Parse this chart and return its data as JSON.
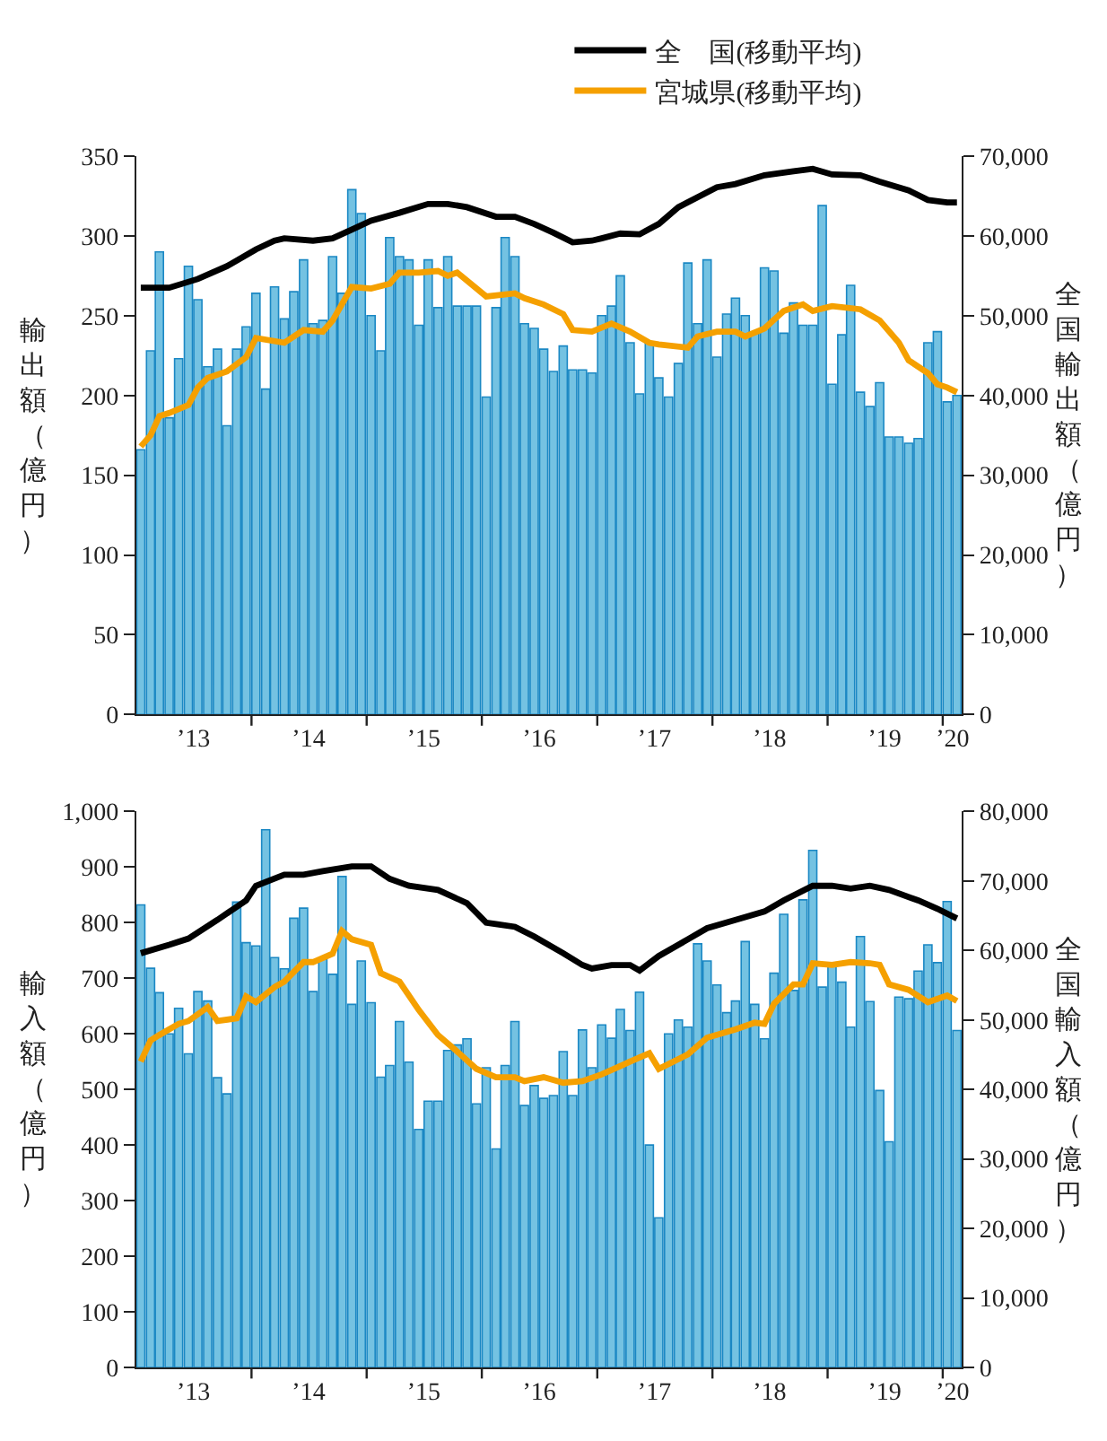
{
  "chart_data": [
    {
      "type": "bar",
      "ylabel": "輸出額（億円）",
      "y2label": "全国輸出額（億円）",
      "legend": "top right",
      "x": [
        "2013-01-15",
        "2013-02-15",
        "2013-03-15",
        "2013-04-15",
        "2013-05-15",
        "2013-06-15",
        "2013-07-15",
        "2013-08-15",
        "2013-09-15",
        "2013-10-15",
        "2013-11-15",
        "2013-12-15",
        "2014-01-15",
        "2014-02-15",
        "2014-03-15",
        "2014-04-15",
        "2014-05-15",
        "2014-06-15",
        "2014-07-15",
        "2014-08-15",
        "2014-09-15",
        "2014-10-15",
        "2014-11-15",
        "2014-12-15",
        "2015-01-15",
        "2015-02-15",
        "2015-03-15",
        "2015-04-15",
        "2015-05-15",
        "2015-06-15",
        "2015-07-15",
        "2015-08-15",
        "2015-09-15",
        "2015-10-15",
        "2015-11-15",
        "2015-12-15",
        "2016-01-15",
        "2016-02-15",
        "2016-03-15",
        "2016-04-15",
        "2016-05-15",
        "2016-06-15",
        "2016-07-15",
        "2016-08-15",
        "2016-09-15",
        "2016-10-15",
        "2016-11-15",
        "2016-12-15",
        "2017-01-15",
        "2017-02-15",
        "2017-03-15",
        "2017-04-15",
        "2017-05-15",
        "2017-06-15",
        "2017-07-15",
        "2017-08-15",
        "2017-09-15",
        "2017-10-15",
        "2017-11-15",
        "2017-12-15",
        "2018-01-15",
        "2018-02-15",
        "2018-03-15",
        "2018-04-15",
        "2018-05-15",
        "2018-06-15",
        "2018-07-15",
        "2018-08-15",
        "2018-09-15",
        "2018-10-15",
        "2018-11-15",
        "2018-12-15",
        "2019-01-15",
        "2019-02-15",
        "2019-03-15",
        "2019-04-15",
        "2019-05-15",
        "2019-06-15",
        "2019-07-15",
        "2019-08-15",
        "2019-09-15",
        "2019-10-15",
        "2019-11-15",
        "2019-12-15",
        "2020-01-15",
        "2020-02-15"
      ],
      "xlim": [
        "2013-01",
        "2020-03"
      ],
      "xticks": [
        {
          "value": "2013-07",
          "label": "’13"
        },
        {
          "value": "2014-07",
          "label": "’14"
        },
        {
          "value": "2015-07",
          "label": "’15"
        },
        {
          "value": "2016-07",
          "label": "’16"
        },
        {
          "value": "2017-07",
          "label": "’17"
        },
        {
          "value": "2018-07",
          "label": "’18"
        },
        {
          "value": "2019-07",
          "label": "’19"
        },
        {
          "value": "2020-02",
          "label": "’20"
        },
        {
          "value": "2014-01",
          "label": null
        },
        {
          "value": "2015-01",
          "label": null
        },
        {
          "value": "2016-01",
          "label": null
        },
        {
          "value": "2017-01",
          "label": null
        },
        {
          "value": "2018-01",
          "label": null
        },
        {
          "value": "2019-01",
          "label": null
        },
        {
          "value": "2020-01",
          "label": null
        }
      ],
      "ylim": [
        0,
        350
      ],
      "yticks": [
        0,
        50,
        100,
        150,
        200,
        250,
        300,
        350
      ],
      "y2lim": [
        0,
        70000
      ],
      "y2ticks": [
        {
          "value": 0,
          "label": "0"
        },
        {
          "value": 10000,
          "label": "10,000"
        },
        {
          "value": 20000,
          "label": "20,000"
        },
        {
          "value": 30000,
          "label": "30,000"
        },
        {
          "value": 40000,
          "label": "40,000"
        },
        {
          "value": 50000,
          "label": "50,000"
        },
        {
          "value": 60000,
          "label": "60,000"
        },
        {
          "value": 70000,
          "label": "70,000"
        }
      ],
      "series": [
        {
          "color": "#74c2e2",
          "values": [
            166,
            228,
            290,
            186,
            223,
            281,
            260,
            218,
            229,
            181,
            229,
            243,
            264,
            204,
            268,
            248,
            265,
            285,
            245,
            247,
            287,
            264,
            329,
            314,
            250,
            228,
            299,
            287,
            285,
            244,
            285,
            255,
            287,
            256,
            256,
            256,
            199,
            255,
            299,
            287,
            245,
            242,
            229,
            215,
            231,
            216,
            216,
            214,
            250,
            256,
            275,
            233,
            201,
            233,
            211,
            199,
            220,
            283,
            245,
            285,
            224,
            251,
            261,
            250,
            239,
            280,
            278,
            239,
            258,
            244,
            244,
            319,
            207,
            238,
            269,
            202,
            193,
            208,
            174,
            174,
            170,
            173,
            233,
            240,
            196,
            200
          ]
        },
        {
          "type": "line",
          "name": "全　国(移動平均)",
          "axis": "y2",
          "color": "#000000",
          "x": [
            "2013-01-15",
            "2013-04-15",
            "2013-07-15",
            "2013-10-15",
            "2014-01-15",
            "2014-03-15",
            "2014-04-15",
            "2014-07-15",
            "2014-09-15",
            "2014-11-15",
            "2015-01-15",
            "2015-04-15",
            "2015-07-15",
            "2015-09-15",
            "2015-11-15",
            "2016-02-15",
            "2016-04-15",
            "2016-06-15",
            "2016-08-15",
            "2016-10-15",
            "2016-12-15",
            "2017-01-15",
            "2017-03-15",
            "2017-05-15",
            "2017-07-15",
            "2017-09-15",
            "2018-01-15",
            "2018-03-15",
            "2018-06-15",
            "2018-09-15",
            "2018-11-15",
            "2019-01-15",
            "2019-04-15",
            "2019-06-15",
            "2019-09-15",
            "2019-11-15",
            "2020-01-15",
            "2020-02-15"
          ],
          "values": [
            53500,
            53500,
            54600,
            56200,
            58300,
            59400,
            59700,
            59400,
            59700,
            60800,
            61900,
            62900,
            64000,
            64000,
            63600,
            62400,
            62400,
            61500,
            60400,
            59200,
            59400,
            59700,
            60300,
            60200,
            61500,
            63600,
            66100,
            66500,
            67600,
            68100,
            68400,
            67700,
            67600,
            66800,
            65700,
            64500,
            64200,
            64200
          ]
        },
        {
          "type": "line",
          "name": "宮城県(移動平均)",
          "color": "#f5a000",
          "x": [
            "2013-01-15",
            "2013-02-15",
            "2013-03-15",
            "2013-04-15",
            "2013-06-15",
            "2013-07-15",
            "2013-08-15",
            "2013-10-15",
            "2013-12-15",
            "2014-01-15",
            "2014-04-15",
            "2014-06-15",
            "2014-08-15",
            "2014-09-15",
            "2014-11-15",
            "2015-01-15",
            "2015-03-15",
            "2015-04-15",
            "2015-06-15",
            "2015-08-15",
            "2015-09-15",
            "2015-10-15",
            "2016-01-15",
            "2016-04-15",
            "2016-05-15",
            "2016-07-15",
            "2016-09-15",
            "2016-10-15",
            "2016-12-15",
            "2017-02-15",
            "2017-04-15",
            "2017-06-15",
            "2017-07-15",
            "2017-10-15",
            "2017-11-15",
            "2018-01-15",
            "2018-03-15",
            "2018-04-15",
            "2018-06-15",
            "2018-08-15",
            "2018-10-15",
            "2018-11-15",
            "2019-01-15",
            "2019-04-15",
            "2019-06-15",
            "2019-08-15",
            "2019-09-15",
            "2019-11-15",
            "2019-12-15",
            "2020-01-15",
            "2020-02-15"
          ],
          "values": [
            168,
            175,
            187,
            189,
            194,
            205,
            211,
            215,
            224,
            236,
            233,
            241,
            240,
            247,
            268,
            267,
            270,
            277,
            277,
            278,
            275,
            277,
            262,
            264,
            261,
            257,
            251,
            241,
            240,
            245,
            240,
            233,
            232,
            230,
            237,
            240,
            240,
            237,
            242,
            253,
            257,
            253,
            256,
            254,
            247,
            233,
            222,
            214,
            207,
            205,
            202
          ]
        }
      ]
    },
    {
      "type": "bar",
      "ylabel": "輸入額（億円）",
      "y2label": "全国輸入額（億円）",
      "x": [
        "2013-01-15",
        "2013-02-15",
        "2013-03-15",
        "2013-04-15",
        "2013-05-15",
        "2013-06-15",
        "2013-07-15",
        "2013-08-15",
        "2013-09-15",
        "2013-10-15",
        "2013-11-15",
        "2013-12-15",
        "2014-01-15",
        "2014-02-15",
        "2014-03-15",
        "2014-04-15",
        "2014-05-15",
        "2014-06-15",
        "2014-07-15",
        "2014-08-15",
        "2014-09-15",
        "2014-10-15",
        "2014-11-15",
        "2014-12-15",
        "2015-01-15",
        "2015-02-15",
        "2015-03-15",
        "2015-04-15",
        "2015-05-15",
        "2015-06-15",
        "2015-07-15",
        "2015-08-15",
        "2015-09-15",
        "2015-10-15",
        "2015-11-15",
        "2015-12-15",
        "2016-01-15",
        "2016-02-15",
        "2016-03-15",
        "2016-04-15",
        "2016-05-15",
        "2016-06-15",
        "2016-07-15",
        "2016-08-15",
        "2016-09-15",
        "2016-10-15",
        "2016-11-15",
        "2016-12-15",
        "2017-01-15",
        "2017-02-15",
        "2017-03-15",
        "2017-04-15",
        "2017-05-15",
        "2017-06-15",
        "2017-07-15",
        "2017-08-15",
        "2017-09-15",
        "2017-10-15",
        "2017-11-15",
        "2017-12-15",
        "2018-01-15",
        "2018-02-15",
        "2018-03-15",
        "2018-04-15",
        "2018-05-15",
        "2018-06-15",
        "2018-07-15",
        "2018-08-15",
        "2018-09-15",
        "2018-10-15",
        "2018-11-15",
        "2018-12-15",
        "2019-01-15",
        "2019-02-15",
        "2019-03-15",
        "2019-04-15",
        "2019-05-15",
        "2019-06-15",
        "2019-07-15",
        "2019-08-15",
        "2019-09-15",
        "2019-10-15",
        "2019-11-15",
        "2019-12-15",
        "2020-01-15",
        "2020-02-15"
      ],
      "xlim": [
        "2013-01",
        "2020-03"
      ],
      "xticks": [
        {
          "value": "2013-07",
          "label": "’13"
        },
        {
          "value": "2014-07",
          "label": "’14"
        },
        {
          "value": "2015-07",
          "label": "’15"
        },
        {
          "value": "2016-07",
          "label": "’16"
        },
        {
          "value": "2017-07",
          "label": "’17"
        },
        {
          "value": "2018-07",
          "label": "’18"
        },
        {
          "value": "2019-07",
          "label": "’19"
        },
        {
          "value": "2020-02",
          "label": "’20"
        },
        {
          "value": "2014-01",
          "label": null
        },
        {
          "value": "2015-01",
          "label": null
        },
        {
          "value": "2016-01",
          "label": null
        },
        {
          "value": "2017-01",
          "label": null
        },
        {
          "value": "2018-01",
          "label": null
        },
        {
          "value": "2019-01",
          "label": null
        },
        {
          "value": "2020-01",
          "label": null
        }
      ],
      "ylim": [
        0,
        1000
      ],
      "yticks": [
        0,
        100,
        200,
        300,
        400,
        500,
        600,
        700,
        800,
        900,
        {
          "value": 1000,
          "label": "1,000"
        }
      ],
      "y2lim": [
        0,
        80000
      ],
      "y2ticks": [
        {
          "value": 0,
          "label": "0"
        },
        {
          "value": 10000,
          "label": "10,000"
        },
        {
          "value": 20000,
          "label": "20,000"
        },
        {
          "value": 30000,
          "label": "30,000"
        },
        {
          "value": 40000,
          "label": "40,000"
        },
        {
          "value": 50000,
          "label": "50,000"
        },
        {
          "value": 60000,
          "label": "60,000"
        },
        {
          "value": 70000,
          "label": "70,000"
        },
        {
          "value": 80000,
          "label": "80,000"
        }
      ],
      "series": [
        {
          "color": "#74c2e2",
          "values": [
            832,
            718,
            674,
            600,
            646,
            564,
            676,
            659,
            521,
            492,
            837,
            764,
            758,
            967,
            737,
            717,
            808,
            826,
            676,
            734,
            707,
            883,
            653,
            731,
            656,
            522,
            543,
            622,
            549,
            428,
            479,
            479,
            570,
            580,
            591,
            474,
            539,
            393,
            543,
            622,
            471,
            507,
            484,
            489,
            568,
            489,
            607,
            539,
            616,
            592,
            644,
            606,
            675,
            400,
            269,
            600,
            625,
            612,
            762,
            731,
            688,
            638,
            659,
            766,
            653,
            591,
            709,
            815,
            678,
            841,
            930,
            684,
            723,
            693,
            612,
            775,
            658,
            498,
            406,
            666,
            663,
            713,
            760,
            728,
            838,
            606
          ]
        },
        {
          "type": "line",
          "axis": "y2",
          "color": "#000000",
          "x": [
            "2013-01-15",
            "2013-04-15",
            "2013-06-15",
            "2013-09-15",
            "2013-12-15",
            "2014-01-15",
            "2014-04-15",
            "2014-06-15",
            "2014-08-15",
            "2014-11-15",
            "2015-01-15",
            "2015-03-15",
            "2015-05-15",
            "2015-08-15",
            "2015-11-15",
            "2016-01-15",
            "2016-02-15",
            "2016-04-15",
            "2016-06-15",
            "2016-09-15",
            "2016-11-15",
            "2016-12-15",
            "2017-02-15",
            "2017-04-15",
            "2017-05-15",
            "2017-07-15",
            "2017-09-15",
            "2017-12-15",
            "2018-03-15",
            "2018-06-15",
            "2018-08-15",
            "2018-11-15",
            "2019-01-15",
            "2019-03-15",
            "2019-05-15",
            "2019-07-15",
            "2019-10-15",
            "2019-12-15",
            "2020-02-15"
          ],
          "values": [
            59600,
            60800,
            61700,
            64400,
            67200,
            69300,
            70900,
            70900,
            71400,
            72100,
            72100,
            70300,
            69300,
            68700,
            66800,
            64000,
            63800,
            63400,
            62000,
            59600,
            57900,
            57400,
            57900,
            57900,
            57100,
            59200,
            60800,
            63200,
            64400,
            65600,
            67200,
            69300,
            69300,
            68900,
            69300,
            68700,
            67200,
            66000,
            64600
          ]
        },
        {
          "type": "line",
          "color": "#f5a000",
          "x": [
            "2013-01-15",
            "2013-02-15",
            "2013-03-15",
            "2013-05-15",
            "2013-06-15",
            "2013-08-15",
            "2013-09-15",
            "2013-11-15",
            "2013-12-15",
            "2014-01-15",
            "2014-03-15",
            "2014-04-15",
            "2014-06-15",
            "2014-07-15",
            "2014-09-15",
            "2014-10-15",
            "2014-11-15",
            "2015-01-15",
            "2015-02-15",
            "2015-04-15",
            "2015-06-15",
            "2015-08-15",
            "2015-10-15",
            "2015-12-15",
            "2016-02-15",
            "2016-04-15",
            "2016-05-15",
            "2016-07-15",
            "2016-09-15",
            "2016-11-15",
            "2017-01-15",
            "2017-03-15",
            "2017-04-15",
            "2017-06-15",
            "2017-07-15",
            "2017-10-15",
            "2017-12-15",
            "2018-03-15",
            "2018-05-15",
            "2018-06-15",
            "2018-07-15",
            "2018-09-15",
            "2018-10-15",
            "2018-11-15",
            "2019-01-15",
            "2019-03-15",
            "2019-05-15",
            "2019-06-15",
            "2019-07-15",
            "2019-09-15",
            "2019-11-15",
            "2020-01-15",
            "2020-02-15"
          ],
          "values": [
            550,
            588,
            598,
            618,
            623,
            648,
            623,
            628,
            667,
            657,
            684,
            694,
            729,
            729,
            744,
            785,
            770,
            760,
            709,
            694,
            643,
            598,
            568,
            537,
            522,
            522,
            515,
            522,
            512,
            515,
            527,
            542,
            550,
            565,
            537,
            563,
            593,
            608,
            620,
            618,
            654,
            689,
            689,
            727,
            724,
            729,
            727,
            724,
            689,
            679,
            657,
            669,
            659
          ]
        }
      ]
    }
  ]
}
